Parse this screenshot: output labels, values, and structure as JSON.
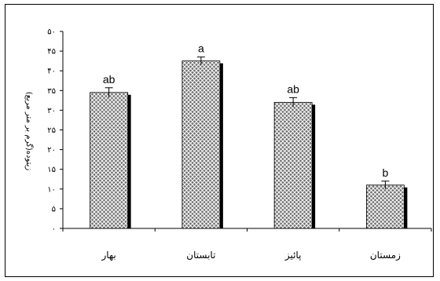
{
  "chart_data": {
    "type": "bar",
    "categories": [
      "بهار",
      "تابستان",
      "پائیز",
      "زمستان"
    ],
    "values": [
      34.5,
      42.5,
      32,
      11
    ],
    "errors": [
      1.2,
      1.0,
      1.2,
      1.0
    ],
    "data_labels": [
      "ab",
      "a",
      "ab",
      "b"
    ],
    "ylabel": "زیتوده(گرم بر متر مربع)",
    "ylim": [
      0,
      50
    ],
    "yticks": [
      0,
      5,
      10,
      15,
      20,
      25,
      30,
      35,
      40,
      45,
      50
    ],
    "ytick_labels": [
      "۰",
      "۵",
      "۱۰",
      "۱۵",
      "۲۰",
      "۲۵",
      "۳۰",
      "۳۵",
      "۴۰",
      "۴۵",
      "۵۰"
    ],
    "grid": false,
    "legend": "none",
    "bar_pattern": "crosshatch",
    "bar_shadow": true,
    "colors": {
      "bar_fill": "#7a7a7a",
      "bar_hatch": "#ffffff",
      "shadow": "#000000",
      "axis": "#000000"
    }
  }
}
